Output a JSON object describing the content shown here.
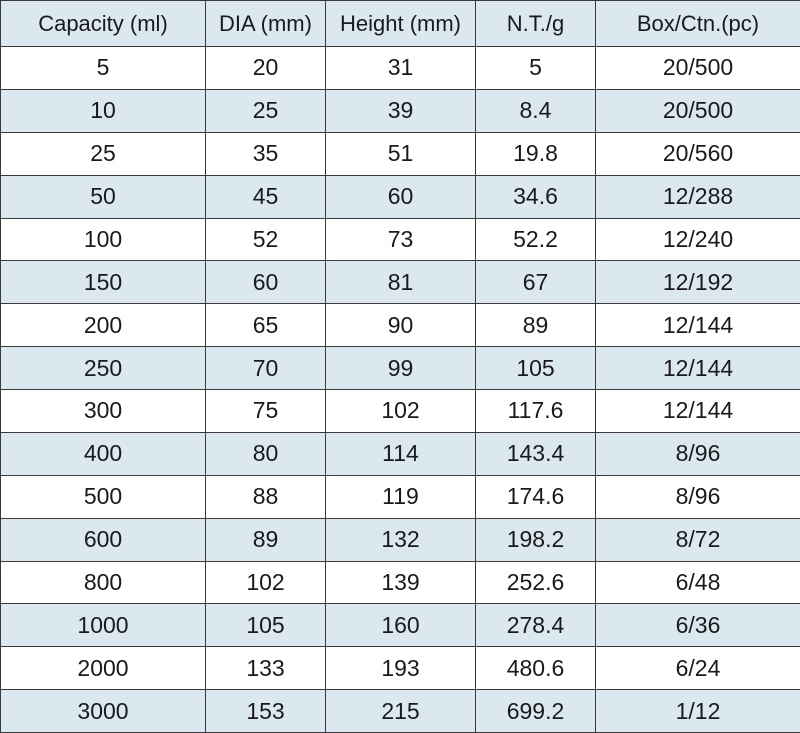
{
  "table": {
    "header": [
      "Capacity (ml)",
      "DIA (mm)",
      "Height (mm)",
      "N.T./g",
      "Box/Ctn.(pc)"
    ],
    "rows": [
      [
        "5",
        "20",
        "31",
        "5",
        "20/500"
      ],
      [
        "10",
        "25",
        "39",
        "8.4",
        "20/500"
      ],
      [
        "25",
        "35",
        "51",
        "19.8",
        "20/560"
      ],
      [
        "50",
        "45",
        "60",
        "34.6",
        "12/288"
      ],
      [
        "100",
        "52",
        "73",
        "52.2",
        "12/240"
      ],
      [
        "150",
        "60",
        "81",
        "67",
        "12/192"
      ],
      [
        "200",
        "65",
        "90",
        "89",
        "12/144"
      ],
      [
        "250",
        "70",
        "99",
        "105",
        "12/144"
      ],
      [
        "300",
        "75",
        "102",
        "117.6",
        "12/144"
      ],
      [
        "400",
        "80",
        "114",
        "143.4",
        "8/96"
      ],
      [
        "500",
        "88",
        "119",
        "174.6",
        "8/96"
      ],
      [
        "600",
        "89",
        "132",
        "198.2",
        "8/72"
      ],
      [
        "800",
        "102",
        "139",
        "252.6",
        "6/48"
      ],
      [
        "1000",
        "105",
        "160",
        "278.4",
        "6/36"
      ],
      [
        "2000",
        "133",
        "193",
        "480.6",
        "6/24"
      ],
      [
        "3000",
        "153",
        "215",
        "699.2",
        "1/12"
      ]
    ]
  }
}
